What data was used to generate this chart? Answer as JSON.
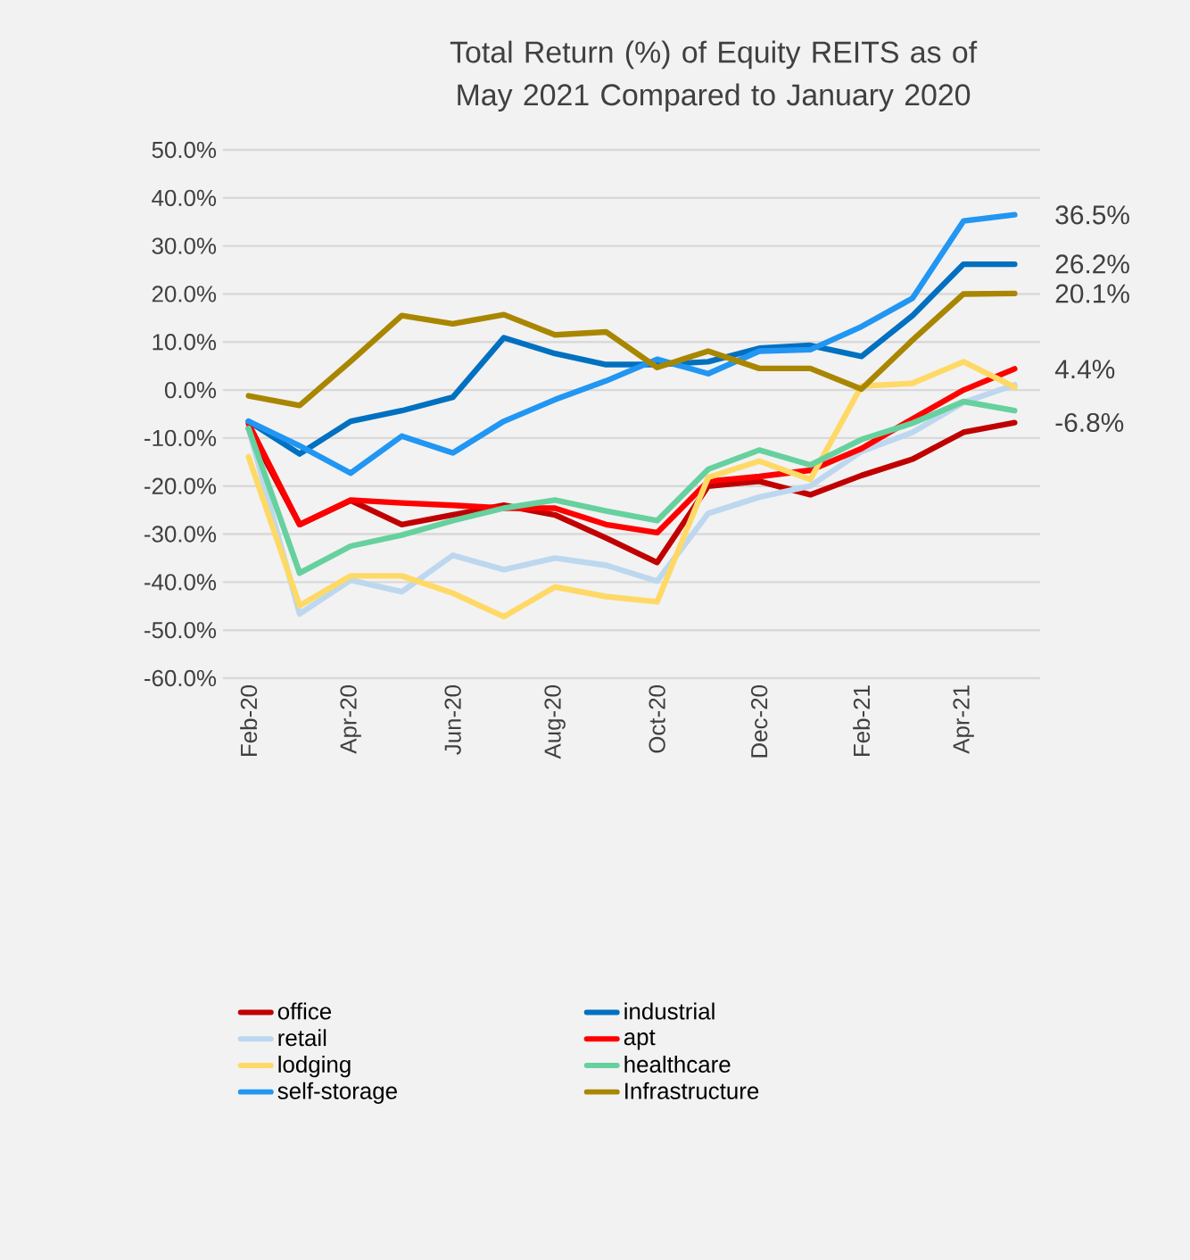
{
  "chart_data": {
    "type": "line",
    "title": "Total Return (%) of Equity REITS as of May  2021 Compared to January 2020",
    "categories": [
      "Feb-20",
      null,
      "Apr-20",
      null,
      "Jun-20",
      null,
      "Aug-20",
      null,
      "Oct-20",
      null,
      "Dec-20",
      null,
      "Feb-21",
      null,
      "Apr-21",
      null
    ],
    "ylim": [
      -60,
      50
    ],
    "yticks": [
      {
        "value": -60,
        "label": "-60.0%"
      },
      {
        "value": -50,
        "label": "-50.0%"
      },
      {
        "value": -40,
        "label": "-40.0%"
      },
      {
        "value": -30,
        "label": "-30.0%"
      },
      {
        "value": -20,
        "label": "-20.0%"
      },
      {
        "value": -10,
        "label": "-10.0%"
      },
      {
        "value": 0,
        "label": "0.0%"
      },
      {
        "value": 10,
        "label": "10.0%"
      },
      {
        "value": 20,
        "label": "20.0%"
      },
      {
        "value": 30,
        "label": "30.0%"
      },
      {
        "value": 40,
        "label": "40.0%"
      },
      {
        "value": 50,
        "label": "50.0%"
      }
    ],
    "grid": "y",
    "legend": "bottom",
    "series": [
      {
        "name": "office",
        "color": "#c00000",
        "values": [
          -8,
          -28,
          -23,
          -28,
          -26,
          -24,
          -26,
          -30.8,
          -35.9,
          -20,
          -19,
          -21.8,
          -17.8,
          -14.4,
          -8.8,
          -6.8
        ]
      },
      {
        "name": "industrial",
        "color": "#0070c0",
        "values": [
          -6.5,
          -13.3,
          -6.5,
          -4.3,
          -1.5,
          10.9,
          7.6,
          5.3,
          5.3,
          5.9,
          8.7,
          9.3,
          7,
          15.5,
          26.2,
          26.2
        ]
      },
      {
        "name": "retail",
        "color": "#bdd7ee",
        "values": [
          -8,
          -46.6,
          -39.6,
          -42,
          -34.4,
          -37.4,
          -35,
          -36.5,
          -39.8,
          -25.7,
          -22.3,
          -20,
          -12.8,
          -8.8,
          -2.6,
          1.1
        ]
      },
      {
        "name": "apt",
        "color": "#ff0000",
        "values": [
          -7,
          -28,
          -22.9,
          -23.5,
          -24,
          -24.6,
          -24.6,
          -28,
          -29.7,
          -19,
          -18,
          -16.7,
          -12.2,
          -6,
          0,
          4.4
        ]
      },
      {
        "name": "lodging",
        "color": "#ffd966",
        "values": [
          -13.9,
          -44.9,
          -38.7,
          -38.7,
          -42.3,
          -47.2,
          -41,
          -43,
          -44.1,
          -18.2,
          -14.8,
          -18.6,
          0.8,
          1.4,
          5.9,
          0.6
        ]
      },
      {
        "name": "healthcare",
        "color": "#66d19e",
        "values": [
          -8,
          -38.1,
          -32.5,
          -30.2,
          -27.2,
          -24.6,
          -22.9,
          -25.2,
          -27.2,
          -16.5,
          -12.5,
          -15.6,
          -10.3,
          -6.9,
          -2.4,
          -4.3
        ]
      },
      {
        "name": "self-storage",
        "color": "#2196f3",
        "values": [
          -6.5,
          -11.6,
          -17.3,
          -9.6,
          -13.1,
          -6.5,
          -2,
          1.9,
          6.4,
          3.4,
          8.1,
          8.4,
          13.2,
          19.1,
          35.2,
          36.5
        ]
      },
      {
        "name": "Infrastructure",
        "color": "#a98600",
        "values": [
          -1.2,
          -3.2,
          6,
          15.5,
          13.8,
          15.7,
          11.5,
          12.1,
          4.7,
          8.1,
          4.5,
          4.5,
          0.2,
          10.4,
          20,
          20.1
        ]
      }
    ],
    "annotations": [
      "36.5%",
      "26.2%",
      "20.1%",
      "4.4%",
      "-6.8%"
    ]
  }
}
